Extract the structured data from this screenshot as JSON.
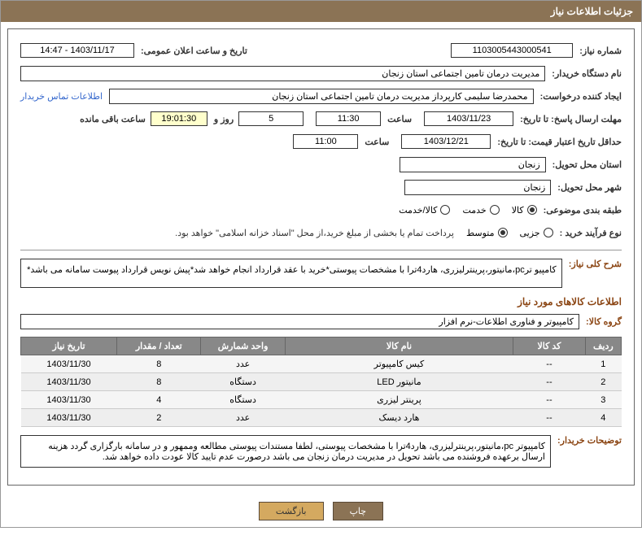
{
  "header": {
    "title": "جزئیات اطلاعات نیاز"
  },
  "labels": {
    "need_number": "شماره نیاز:",
    "announce_datetime": "تاریخ و ساعت اعلان عمومی:",
    "buyer_org": "نام دستگاه خریدار:",
    "requester": "ایجاد کننده درخواست:",
    "contact_link": "اطلاعات تماس خریدار",
    "response_deadline": "مهلت ارسال پاسخ: تا تاریخ:",
    "time": "ساعت",
    "days_and": "روز و",
    "time_remaining": "ساعت باقی مانده",
    "price_validity": "حداقل تاریخ اعتبار قیمت: تا تاریخ:",
    "delivery_province": "استان محل تحویل:",
    "delivery_city": "شهر محل تحویل:",
    "category": "طبقه بندی موضوعی:",
    "purchase_type": "نوع فرآیند خرید :",
    "purchase_note": "پرداخت تمام یا بخشی از مبلغ خرید،از محل \"اسناد خزانه اسلامی\" خواهد بود.",
    "need_desc": "شرح کلی نیاز:",
    "items_info": "اطلاعات کالاهای مورد نیاز",
    "product_group": "گروه کالا:",
    "buyer_notes": "توضیحات خریدار:"
  },
  "values": {
    "need_number": "1103005443000541",
    "announce_datetime": "1403/11/17 - 14:47",
    "buyer_org": "مدیریت درمان تامین اجتماعی استان زنجان",
    "requester": "محمدرضا سلیمی کارپرداز مدیریت درمان تامین اجتماعی استان زنجان",
    "response_date": "1403/11/23",
    "response_time": "11:30",
    "days_remaining": "5",
    "time_countdown": "19:01:30",
    "price_validity_date": "1403/12/21",
    "price_validity_time": "11:00",
    "delivery_province": "زنجان",
    "delivery_city": "زنجان",
    "need_desc": "کامپیو ترpc،مانیتور،پرینترلیزری، هارد4ترا با مشخصات پیوستی*خرید با عقد قرارداد انجام خواهد شد*پیش نویس قرارداد پیوست سامانه می باشد*",
    "product_group": "کامپیوتر و فناوری اطلاعات-نرم افزار",
    "buyer_notes": "کامپیوتر pc،مانیتور،پرینترلیزری، هارد4ترا با مشخصات پیوستی، لطفا مستندات پیوستی مطالعه وممهور و در سامانه بارگزاری گردد هزینه ارسال برعهده فروشنده می باشد تحویل در مدیریت درمان زنجان می باشد درصورت عدم تایید کالا عودت داده خواهد شد."
  },
  "radios": {
    "category": [
      {
        "label": "کالا",
        "checked": true
      },
      {
        "label": "خدمت",
        "checked": false
      },
      {
        "label": "کالا/خدمت",
        "checked": false
      }
    ],
    "purchase_type": [
      {
        "label": "جزیی",
        "checked": false
      },
      {
        "label": "متوسط",
        "checked": true
      }
    ]
  },
  "table": {
    "headers": [
      "ردیف",
      "کد کالا",
      "نام کالا",
      "واحد شمارش",
      "تعداد / مقدار",
      "تاریخ نیاز"
    ],
    "rows": [
      [
        "1",
        "--",
        "کیس کامپیوتر",
        "عدد",
        "8",
        "1403/11/30"
      ],
      [
        "2",
        "--",
        "مانیتور LED",
        "دستگاه",
        "8",
        "1403/11/30"
      ],
      [
        "3",
        "--",
        "پرینتر لیزری",
        "دستگاه",
        "4",
        "1403/11/30"
      ],
      [
        "4",
        "--",
        "هارد دیسک",
        "عدد",
        "2",
        "1403/11/30"
      ]
    ]
  },
  "buttons": {
    "print": "چاپ",
    "back": "بازگشت"
  }
}
